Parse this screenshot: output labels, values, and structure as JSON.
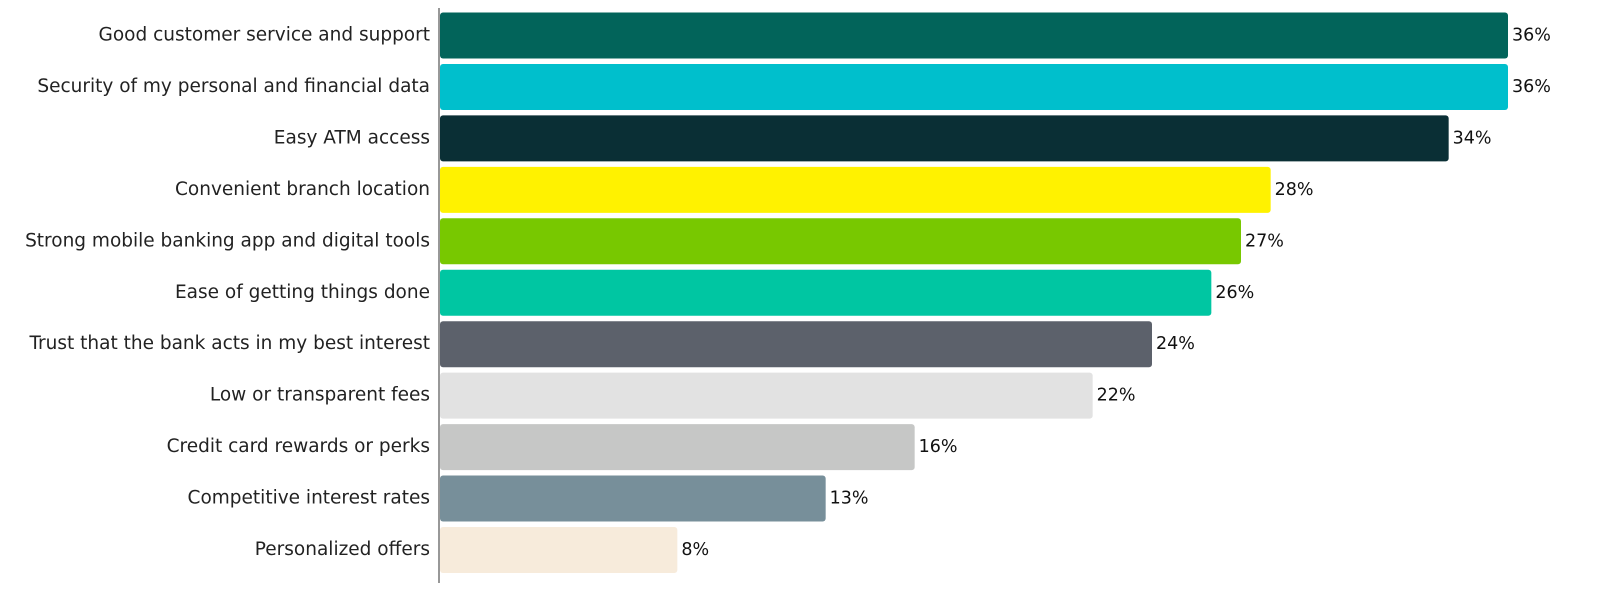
{
  "chart_data": {
    "type": "bar",
    "orientation": "horizontal",
    "categories": [
      "Good customer service and support",
      "Security of my personal and financial data",
      "Easy ATM access",
      "Convenient branch location",
      "Strong mobile banking app and digital tools",
      "Ease of getting things done",
      "Trust that the bank acts in my best interest",
      "Low or transparent fees",
      "Credit card rewards or perks",
      "Competitive interest rates",
      "Personalized offers"
    ],
    "values": [
      36,
      36,
      34,
      28,
      27,
      26,
      24,
      22,
      16,
      13,
      8
    ],
    "value_labels": [
      "36%",
      "36%",
      "34%",
      "28%",
      "27%",
      "26%",
      "24%",
      "22%",
      "16%",
      "13%",
      "8%"
    ],
    "colors": [
      "#02645a",
      "#00bfcc",
      "#0a2f35",
      "#fff200",
      "#78c800",
      "#00c6a2",
      "#5c616b",
      "#e2e2e2",
      "#c6c7c6",
      "#778f9a",
      "#f7ebdb"
    ]
  }
}
